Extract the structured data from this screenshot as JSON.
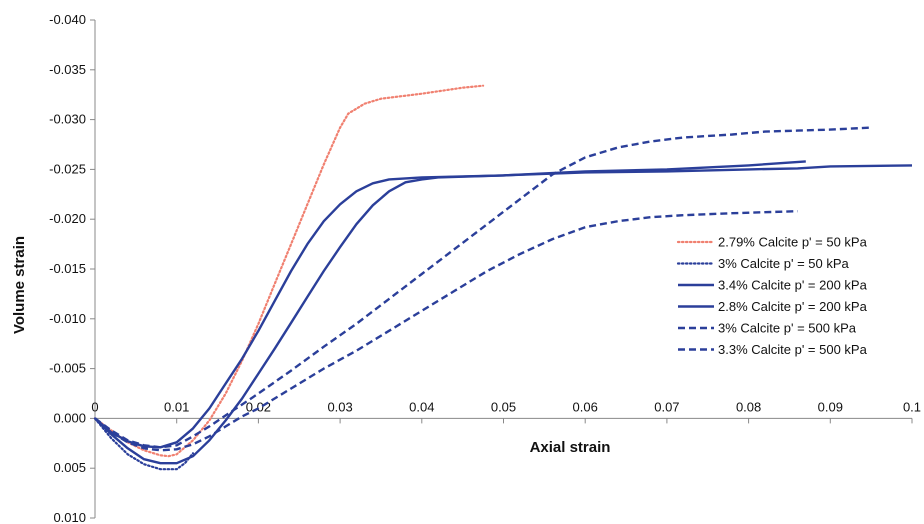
{
  "chart_data": {
    "type": "line",
    "xlabel": "Axial strain",
    "ylabel": "Volume strain",
    "xlim": [
      0,
      0.1
    ],
    "ylim": [
      0.01,
      -0.04
    ],
    "y_axis_inverted": true,
    "grid": false,
    "legend_placement": "right",
    "x_ticks": [
      "0",
      "0.01",
      "0.02",
      "0.03",
      "0.04",
      "0.05",
      "0.06",
      "0.07",
      "0.08",
      "0.09",
      "0.1"
    ],
    "y_ticks": [
      "-0.040",
      "-0.035",
      "-0.030",
      "-0.025",
      "-0.020",
      "-0.015",
      "-0.010",
      "-0.005",
      "0.000",
      "0.005",
      "0.010"
    ],
    "x_tick_values": [
      0,
      0.01,
      0.02,
      0.03,
      0.04,
      0.05,
      0.06,
      0.07,
      0.08,
      0.09,
      0.1
    ],
    "y_tick_values": [
      -0.04,
      -0.035,
      -0.03,
      -0.025,
      -0.02,
      -0.015,
      -0.01,
      -0.005,
      0,
      0.005,
      0.01
    ],
    "series": [
      {
        "name": "2.79% Calcite p' = 50 kPa",
        "color": "#f08070",
        "style": "dotted",
        "points": [
          [
            0,
            0
          ],
          [
            0.002,
            0.0012
          ],
          [
            0.004,
            0.0024
          ],
          [
            0.006,
            0.0032
          ],
          [
            0.008,
            0.0037
          ],
          [
            0.009,
            0.0038
          ],
          [
            0.01,
            0.0036
          ],
          [
            0.012,
            0.0022
          ],
          [
            0.014,
            0.0002
          ],
          [
            0.016,
            -0.0025
          ],
          [
            0.018,
            -0.0058
          ],
          [
            0.02,
            -0.0095
          ],
          [
            0.022,
            -0.0135
          ],
          [
            0.024,
            -0.0175
          ],
          [
            0.026,
            -0.0215
          ],
          [
            0.028,
            -0.0255
          ],
          [
            0.03,
            -0.0292
          ],
          [
            0.031,
            -0.0306
          ],
          [
            0.033,
            -0.0316
          ],
          [
            0.035,
            -0.0321
          ],
          [
            0.04,
            -0.0326
          ],
          [
            0.045,
            -0.0332
          ],
          [
            0.0475,
            -0.0334
          ]
        ]
      },
      {
        "name": "3% Calcite p' = 50 kPa",
        "color": "#2b3f9a",
        "style": "dotted",
        "points": [
          [
            0,
            0
          ],
          [
            0.002,
            0.002
          ],
          [
            0.004,
            0.0036
          ],
          [
            0.006,
            0.0046
          ],
          [
            0.008,
            0.0051
          ],
          [
            0.01,
            0.0051
          ],
          [
            0.011,
            0.0045
          ],
          [
            0.012,
            0.0035
          ]
        ]
      },
      {
        "name": "3.4% Calcite p' = 200 kPa",
        "color": "#2b3f9a",
        "style": "solid",
        "points": [
          [
            0,
            0
          ],
          [
            0.002,
            0.0014
          ],
          [
            0.004,
            0.0023
          ],
          [
            0.006,
            0.0028
          ],
          [
            0.008,
            0.0029
          ],
          [
            0.01,
            0.0024
          ],
          [
            0.012,
            0.001
          ],
          [
            0.014,
            -0.001
          ],
          [
            0.016,
            -0.0035
          ],
          [
            0.018,
            -0.006
          ],
          [
            0.02,
            -0.0088
          ],
          [
            0.022,
            -0.0118
          ],
          [
            0.024,
            -0.0148
          ],
          [
            0.026,
            -0.0175
          ],
          [
            0.028,
            -0.0198
          ],
          [
            0.03,
            -0.0215
          ],
          [
            0.032,
            -0.0228
          ],
          [
            0.034,
            -0.0236
          ],
          [
            0.036,
            -0.024
          ],
          [
            0.04,
            -0.0242
          ],
          [
            0.05,
            -0.0244
          ],
          [
            0.06,
            -0.0248
          ],
          [
            0.07,
            -0.025
          ],
          [
            0.08,
            -0.0254
          ],
          [
            0.087,
            -0.0258
          ]
        ]
      },
      {
        "name": "2.8% Calcite p' = 200 kPa",
        "color": "#2b3f9a",
        "style": "solid",
        "points": [
          [
            0,
            0
          ],
          [
            0.002,
            0.0016
          ],
          [
            0.004,
            0.003
          ],
          [
            0.006,
            0.0041
          ],
          [
            0.008,
            0.0045
          ],
          [
            0.01,
            0.0045
          ],
          [
            0.012,
            0.0038
          ],
          [
            0.014,
            0.0022
          ],
          [
            0.016,
            0.0002
          ],
          [
            0.018,
            -0.002
          ],
          [
            0.02,
            -0.0045
          ],
          [
            0.022,
            -0.007
          ],
          [
            0.024,
            -0.0096
          ],
          [
            0.026,
            -0.0122
          ],
          [
            0.028,
            -0.0148
          ],
          [
            0.03,
            -0.0172
          ],
          [
            0.032,
            -0.0195
          ],
          [
            0.034,
            -0.0214
          ],
          [
            0.036,
            -0.0228
          ],
          [
            0.038,
            -0.0237
          ],
          [
            0.04,
            -0.024
          ],
          [
            0.042,
            -0.0242
          ],
          [
            0.05,
            -0.0244
          ],
          [
            0.06,
            -0.0247
          ],
          [
            0.07,
            -0.0248
          ],
          [
            0.08,
            -0.025
          ],
          [
            0.086,
            -0.0251
          ],
          [
            0.09,
            -0.0253
          ],
          [
            0.1,
            -0.0254
          ]
        ]
      },
      {
        "name": "3% Calcite p' = 500 kPa",
        "color": "#2b3f9a",
        "style": "dashed",
        "points": [
          [
            0,
            0
          ],
          [
            0.002,
            0.0012
          ],
          [
            0.004,
            0.0022
          ],
          [
            0.006,
            0.0027
          ],
          [
            0.008,
            0.0029
          ],
          [
            0.01,
            0.0027
          ],
          [
            0.012,
            0.0018
          ],
          [
            0.014,
            0.0008
          ],
          [
            0.016,
            -0.0003
          ],
          [
            0.018,
            -0.0014
          ],
          [
            0.02,
            -0.0025
          ],
          [
            0.024,
            -0.0048
          ],
          [
            0.028,
            -0.0072
          ],
          [
            0.032,
            -0.0095
          ],
          [
            0.036,
            -0.012
          ],
          [
            0.04,
            -0.0145
          ],
          [
            0.044,
            -0.017
          ],
          [
            0.048,
            -0.0195
          ],
          [
            0.052,
            -0.022
          ],
          [
            0.056,
            -0.0245
          ],
          [
            0.06,
            -0.0262
          ],
          [
            0.064,
            -0.0272
          ],
          [
            0.068,
            -0.0278
          ],
          [
            0.072,
            -0.0282
          ],
          [
            0.078,
            -0.0285
          ],
          [
            0.082,
            -0.0288
          ],
          [
            0.086,
            -0.0289
          ],
          [
            0.09,
            -0.029
          ],
          [
            0.095,
            -0.0292
          ]
        ]
      },
      {
        "name": "3.3% Calcite p' = 500 kPa",
        "color": "#2b3f9a",
        "style": "dashed",
        "points": [
          [
            0,
            0
          ],
          [
            0.002,
            0.0014
          ],
          [
            0.004,
            0.0024
          ],
          [
            0.006,
            0.003
          ],
          [
            0.008,
            0.0032
          ],
          [
            0.01,
            0.0031
          ],
          [
            0.012,
            0.0026
          ],
          [
            0.014,
            0.0018
          ],
          [
            0.016,
            0.0008
          ],
          [
            0.018,
            -0.0002
          ],
          [
            0.02,
            -0.001
          ],
          [
            0.024,
            -0.003
          ],
          [
            0.028,
            -0.005
          ],
          [
            0.032,
            -0.0068
          ],
          [
            0.036,
            -0.0088
          ],
          [
            0.04,
            -0.0108
          ],
          [
            0.044,
            -0.0128
          ],
          [
            0.048,
            -0.0148
          ],
          [
            0.052,
            -0.0165
          ],
          [
            0.056,
            -0.018
          ],
          [
            0.06,
            -0.0192
          ],
          [
            0.064,
            -0.0198
          ],
          [
            0.068,
            -0.0202
          ],
          [
            0.072,
            -0.0204
          ],
          [
            0.078,
            -0.0206
          ],
          [
            0.082,
            -0.0207
          ],
          [
            0.086,
            -0.0208
          ]
        ]
      }
    ]
  }
}
